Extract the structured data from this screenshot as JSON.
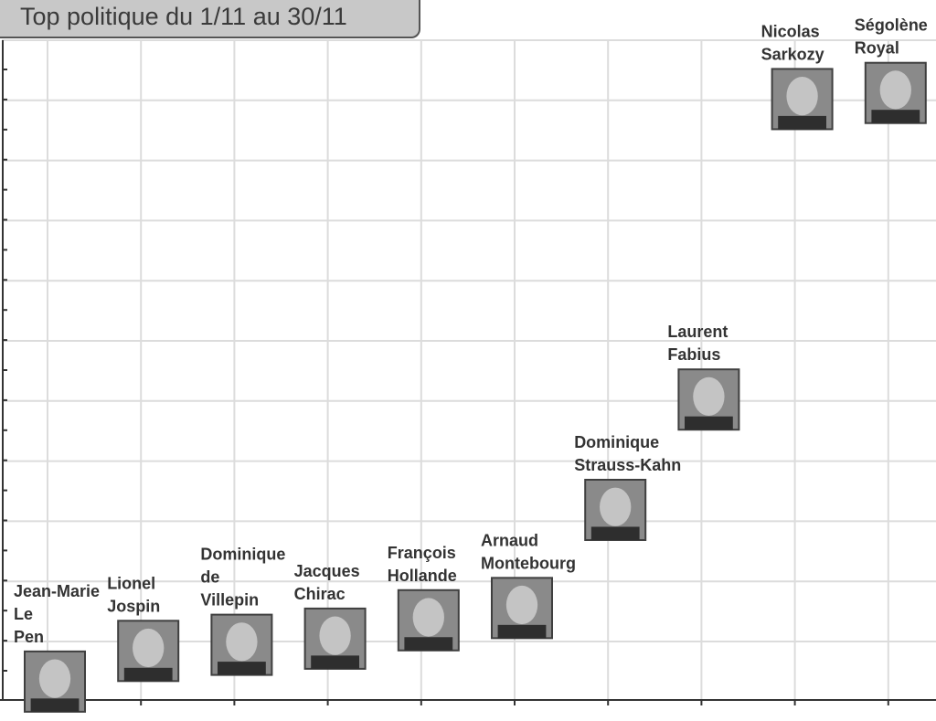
{
  "chart_data": {
    "type": "scatter",
    "title": "Top politique du 1/11 au 30/11",
    "grid": true,
    "points": [
      {
        "label": "Jean-Marie Le Pen",
        "label_lines": [
          "Jean-Marie",
          "Le",
          "Pen"
        ],
        "x": 0,
        "y": 0.3
      },
      {
        "label": "Lionel Jospin",
        "label_lines": [
          "Lionel",
          "Jospin"
        ],
        "x": 1,
        "y": 0.8
      },
      {
        "label": "Dominique de Villepin",
        "label_lines": [
          "Dominique",
          "de",
          "Villepin"
        ],
        "x": 2,
        "y": 0.9
      },
      {
        "label": "Jacques Chirac",
        "label_lines": [
          "Jacques",
          "Chirac"
        ],
        "x": 3,
        "y": 1.0
      },
      {
        "label": "François Hollande",
        "label_lines": [
          "François",
          "Hollande"
        ],
        "x": 4,
        "y": 1.3
      },
      {
        "label": "Arnaud Montebourg",
        "label_lines": [
          "Arnaud",
          "Montebourg"
        ],
        "x": 5,
        "y": 1.5
      },
      {
        "label": "Dominique Strauss-Kahn",
        "label_lines": [
          "Dominique",
          "Strauss-Kahn"
        ],
        "x": 6,
        "y": 3.1
      },
      {
        "label": "Laurent Fabius",
        "label_lines": [
          "Laurent",
          "Fabius"
        ],
        "x": 7,
        "y": 4.9
      },
      {
        "label": "Nicolas Sarkozy",
        "label_lines": [
          "Nicolas",
          "Sarkozy"
        ],
        "x": 8,
        "y": 9.8
      },
      {
        "label": "Ségolène Royal",
        "label_lines": [
          "Ségolène",
          "Royal"
        ],
        "x": 9,
        "y": 9.9
      }
    ]
  }
}
